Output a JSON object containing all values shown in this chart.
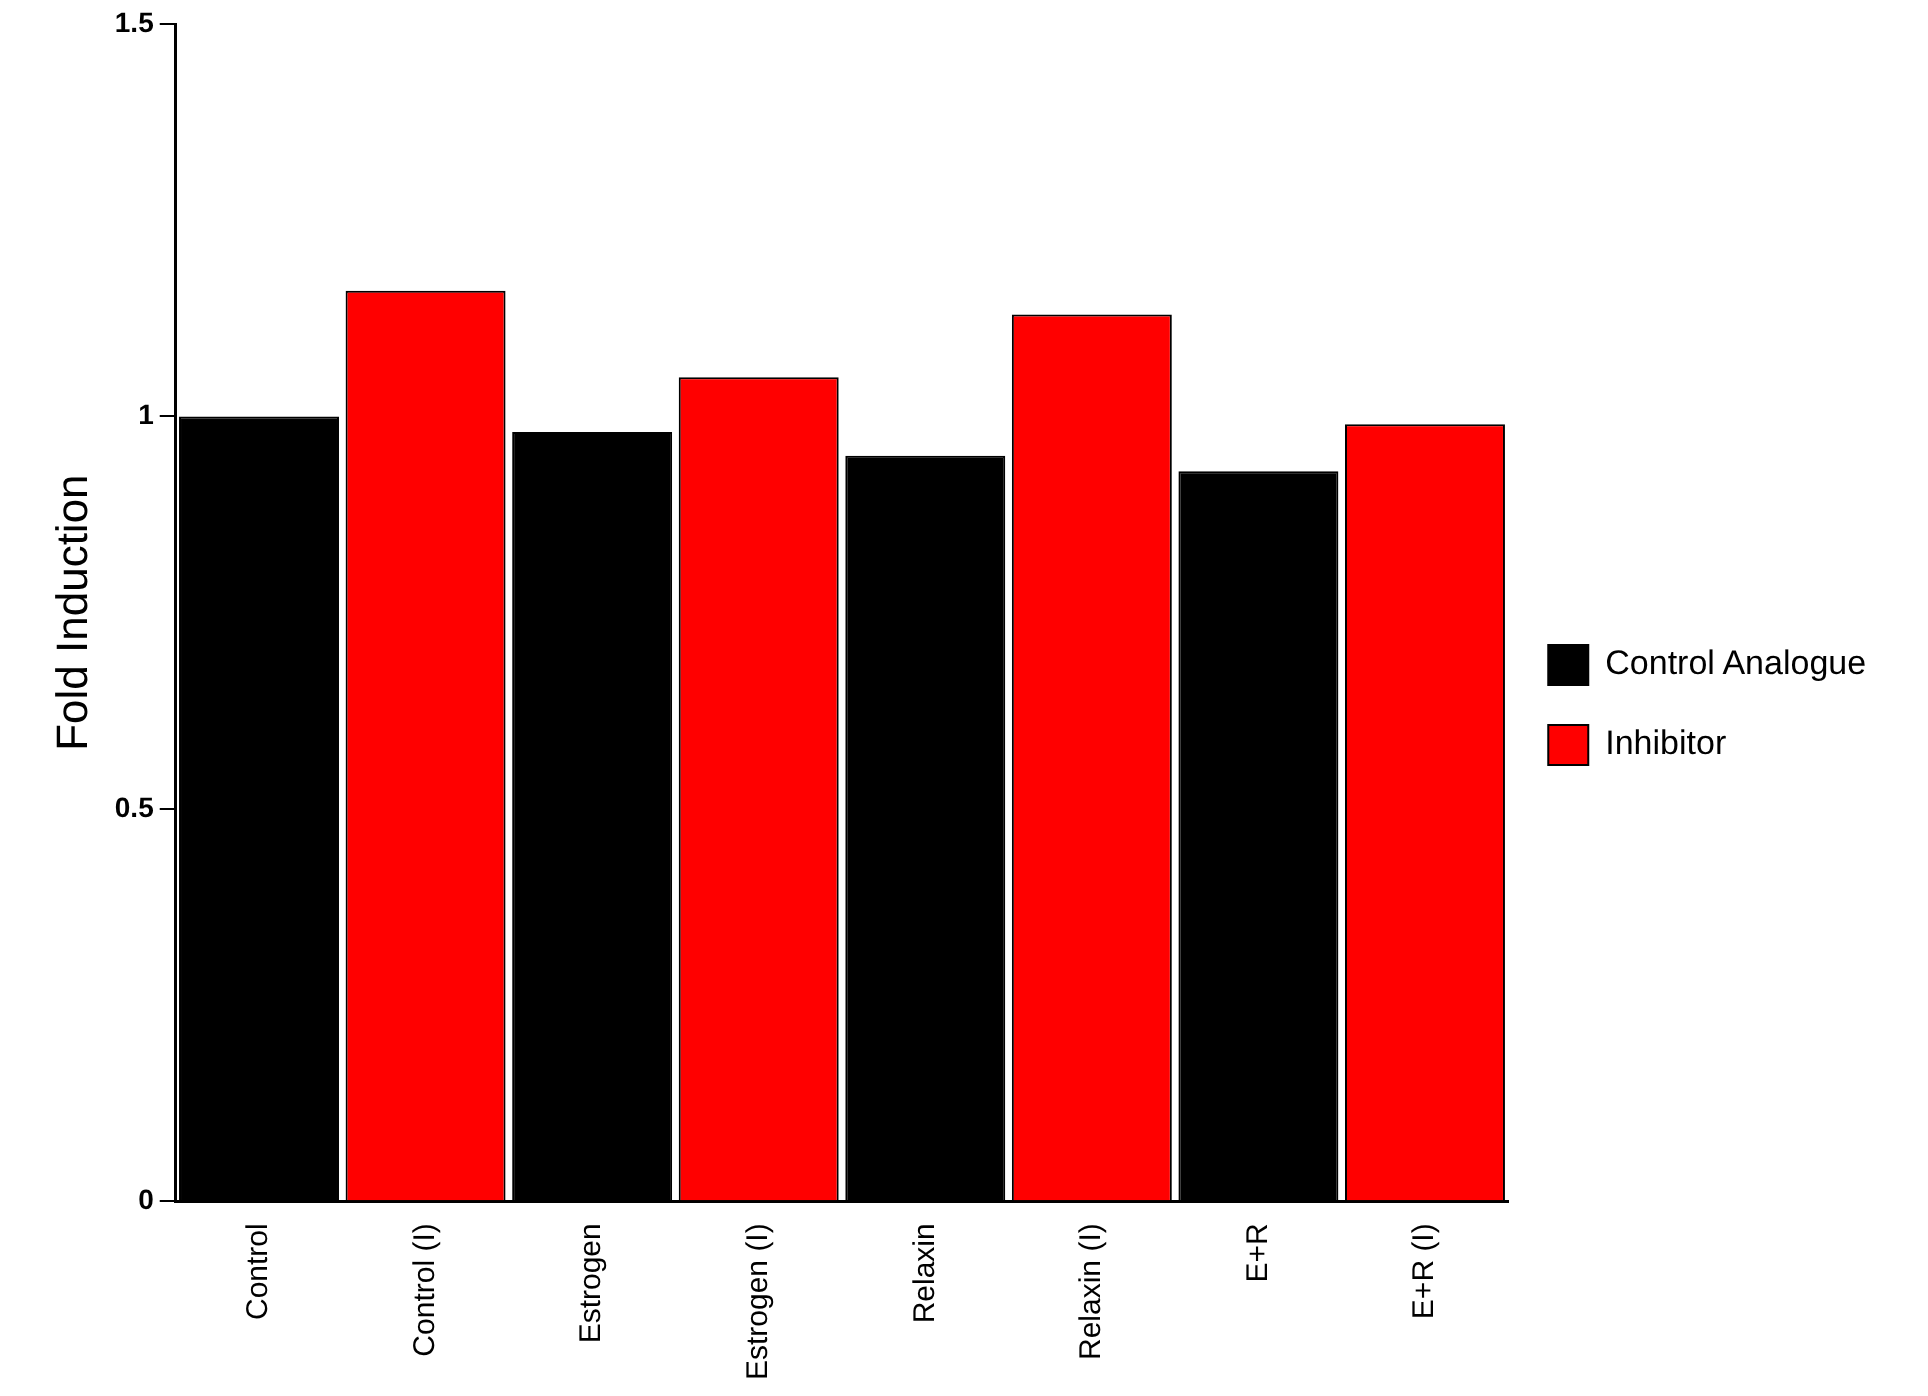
{
  "chart_data": {
    "type": "bar",
    "ylabel": "Fold Induction",
    "categories": [
      "Control",
      "Control (I)",
      "Estrogen",
      "Estrogen (I)",
      "Relaxin",
      "Relaxin (I)",
      "E+R",
      "E+R (I)"
    ],
    "series": [
      {
        "name": "Control Analogue",
        "color": "#000000",
        "values": [
          1.0,
          null,
          0.98,
          null,
          0.95,
          null,
          0.93,
          null
        ]
      },
      {
        "name": "Inhibitor",
        "color": "#ff0000",
        "values": [
          null,
          1.16,
          null,
          1.05,
          null,
          1.13,
          null,
          0.99
        ]
      }
    ],
    "ylim": [
      0,
      1.5
    ],
    "yticks": [
      0,
      0.5,
      1,
      1.5
    ],
    "grid": false,
    "legend": "right"
  }
}
